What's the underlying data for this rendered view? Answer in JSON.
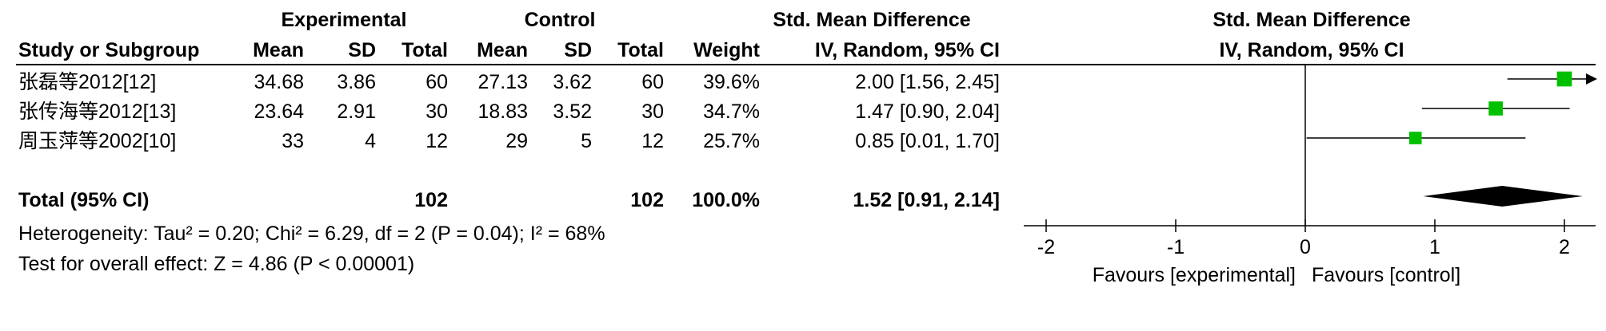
{
  "headers": {
    "group1": "Experimental",
    "group2": "Control",
    "effect_col": "Std. Mean Difference",
    "plot_title": "Std. Mean Difference",
    "study": "Study or Subgroup",
    "mean1": "Mean",
    "sd1": "SD",
    "total1": "Total",
    "mean2": "Mean",
    "sd2": "SD",
    "total2": "Total",
    "weight": "Weight",
    "method": "IV, Random, 95% CI",
    "plot_method": "IV, Random, 95% CI"
  },
  "studies": [
    {
      "name": "张磊等2012[12]",
      "mean1": "34.68",
      "sd1": "3.86",
      "total1": "60",
      "mean2": "27.13",
      "sd2": "3.62",
      "total2": "60",
      "weight": "39.6%",
      "ci_text": "2.00 [1.56, 2.45]"
    },
    {
      "name": "张传海等2012[13]",
      "mean1": "23.64",
      "sd1": "2.91",
      "total1": "30",
      "mean2": "18.83",
      "sd2": "3.52",
      "total2": "30",
      "weight": "34.7%",
      "ci_text": "1.47 [0.90, 2.04]"
    },
    {
      "name": "周玉萍等2002[10]",
      "mean1": "33",
      "sd1": "4",
      "total1": "12",
      "mean2": "29",
      "sd2": "5",
      "total2": "12",
      "weight": "25.7%",
      "ci_text": "0.85 [0.01, 1.70]"
    }
  ],
  "total": {
    "label": "Total (95% CI)",
    "total1": "102",
    "total2": "102",
    "weight": "100.0%",
    "ci_text": "1.52 [0.91, 2.14]"
  },
  "heterogeneity": "Heterogeneity: Tau² = 0.20; Chi² = 6.29, df = 2 (P = 0.04); I² = 68%",
  "overall_effect": "Test for overall effect: Z = 4.86 (P < 0.00001)",
  "colors": {
    "marker": "#00c000",
    "line": "#000000"
  },
  "chart_data": {
    "type": "forest",
    "title": "Std. Mean Difference",
    "subtitle": "IV, Random, 95% CI",
    "xlim": [
      -2.3,
      2.2
    ],
    "xticks": [
      -2,
      -1,
      0,
      1,
      2
    ],
    "xtick_labels": [
      "-2",
      "-1",
      "0",
      "1",
      "2"
    ],
    "xlabel_left": "Favours [experimental]",
    "xlabel_right": "Favours [control]",
    "series": [
      {
        "name": "张磊等2012[12]",
        "estimate": 2.0,
        "lower": 1.56,
        "upper": 2.45,
        "weight": 39.6
      },
      {
        "name": "张传海等2012[13]",
        "estimate": 1.47,
        "lower": 0.9,
        "upper": 2.04,
        "weight": 34.7
      },
      {
        "name": "周玉萍等2002[10]",
        "estimate": 0.85,
        "lower": 0.01,
        "upper": 1.7,
        "weight": 25.7
      }
    ],
    "pooled": {
      "estimate": 1.52,
      "lower": 0.91,
      "upper": 2.14
    }
  }
}
